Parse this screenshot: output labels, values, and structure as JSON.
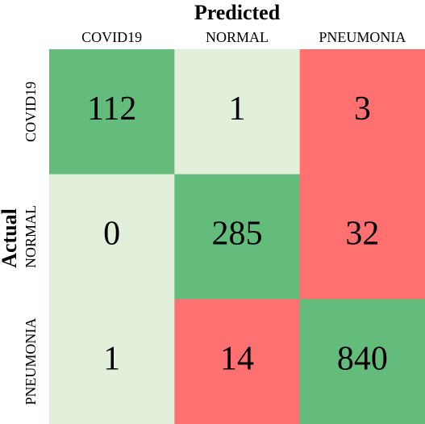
{
  "chart_data": {
    "type": "heatmap",
    "x_label": "Predicted",
    "y_label": "Actual",
    "x_categories": [
      "COVID19",
      "NORMAL",
      "PNEUMONIA"
    ],
    "y_categories": [
      "COVID19",
      "NORMAL",
      "PNEUMONIA"
    ],
    "values": [
      [
        112,
        1,
        3
      ],
      [
        0,
        285,
        32
      ],
      [
        1,
        14,
        840
      ]
    ],
    "colors": [
      [
        "#63bc7b",
        "#e2efda",
        "#ff7171"
      ],
      [
        "#e2efda",
        "#63bc7b",
        "#ff7171"
      ],
      [
        "#e2efda",
        "#ff7171",
        "#63bc7b"
      ]
    ]
  }
}
